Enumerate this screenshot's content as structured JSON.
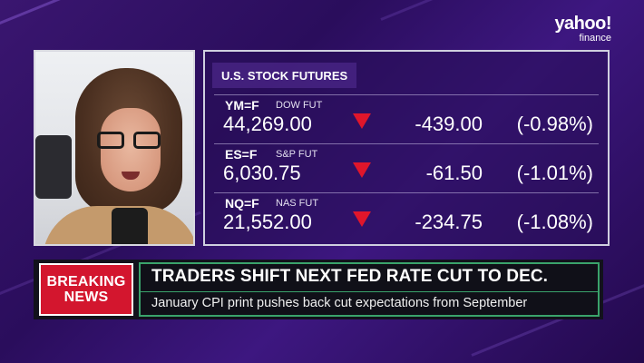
{
  "brand": {
    "name": "yahoo!",
    "sub": "finance"
  },
  "panel": {
    "title": "U.S. STOCK FUTURES",
    "rows": [
      {
        "ticker": "YM=F",
        "name": "DOW FUT",
        "price": "44,269.00",
        "change": "-439.00",
        "pct": "(-0.98%)",
        "direction": "down"
      },
      {
        "ticker": "ES=F",
        "name": "S&P FUT",
        "price": "6,030.75",
        "change": "-61.50",
        "pct": "(-1.01%)",
        "direction": "down"
      },
      {
        "ticker": "NQ=F",
        "name": "NAS FUT",
        "price": "21,552.00",
        "change": "-234.75",
        "pct": "(-1.08%)",
        "direction": "down"
      }
    ],
    "down_color": "#e0162b"
  },
  "lower_third": {
    "badge_line1": "BREAKING",
    "badge_line2": "NEWS",
    "headline": "TRADERS SHIFT NEXT FED RATE CUT TO DEC.",
    "subheadline": "January CPI print pushes back cut expectations from September",
    "badge_color": "#d3162e",
    "accent_color": "#3aa36b"
  }
}
